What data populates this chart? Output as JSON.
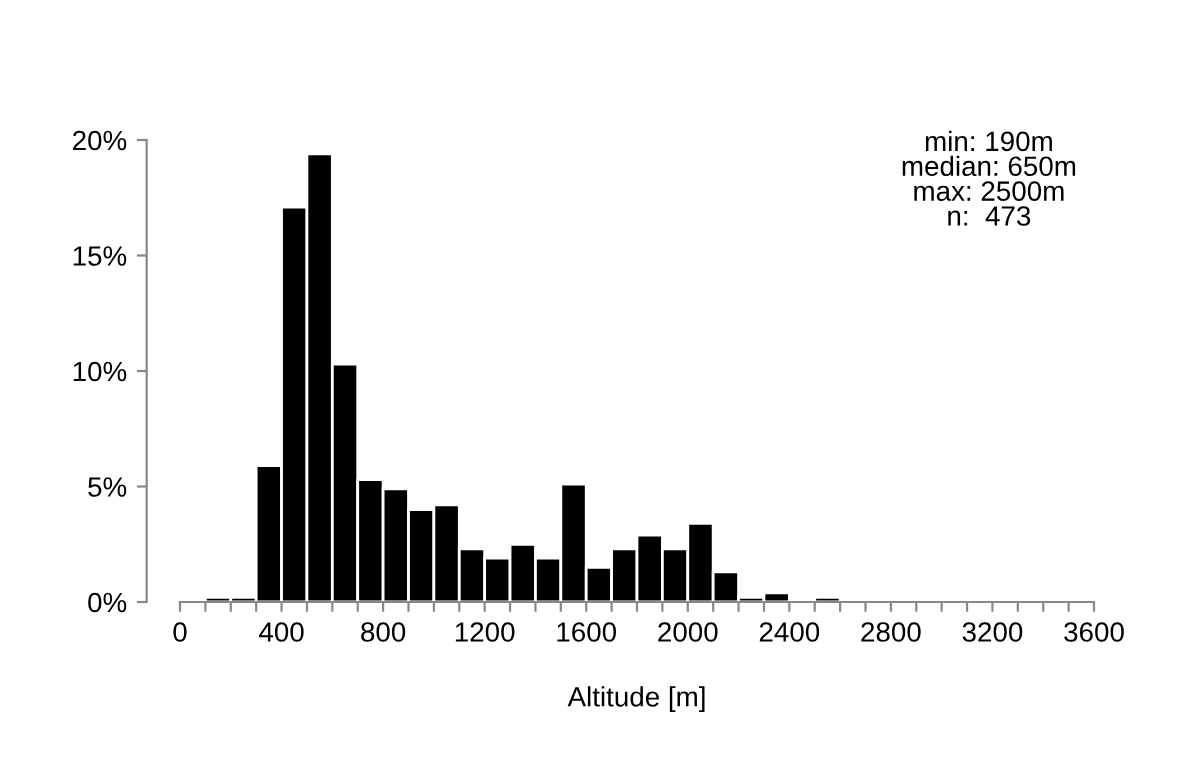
{
  "chart_data": {
    "type": "histogram",
    "xlabel": "Altitude [m]",
    "bins": [
      0,
      100,
      200,
      300,
      400,
      500,
      600,
      700,
      800,
      900,
      1000,
      1100,
      1200,
      1300,
      1400,
      1500,
      1600,
      1700,
      1800,
      1900,
      2000,
      2100,
      2200,
      2300,
      2400,
      2500,
      2600,
      2700,
      2800,
      2900,
      3000,
      3100,
      3200,
      3300,
      3400,
      3500,
      3600
    ],
    "values": [
      0,
      0.2,
      0.2,
      5.9,
      17.1,
      19.4,
      10.3,
      5.3,
      4.9,
      4.0,
      4.2,
      2.3,
      1.9,
      2.5,
      1.9,
      5.1,
      1.5,
      2.3,
      2.9,
      2.3,
      3.4,
      1.3,
      0.2,
      0.4,
      0,
      0.2,
      0,
      0,
      0,
      0,
      0,
      0,
      0,
      0,
      0,
      0
    ],
    "color": "#000000",
    "xlim": [
      0,
      3600
    ],
    "xticks": [
      0,
      {
        "value": 100,
        "label": null
      },
      {
        "value": 200,
        "label": null
      },
      {
        "value": 300,
        "label": null
      },
      400,
      {
        "value": 500,
        "label": null
      },
      {
        "value": 600,
        "label": null
      },
      {
        "value": 700,
        "label": null
      },
      800,
      {
        "value": 900,
        "label": null
      },
      {
        "value": 1000,
        "label": null
      },
      {
        "value": 1100,
        "label": null
      },
      1200,
      {
        "value": 1300,
        "label": null
      },
      {
        "value": 1400,
        "label": null
      },
      {
        "value": 1500,
        "label": null
      },
      1600,
      {
        "value": 1700,
        "label": null
      },
      {
        "value": 1800,
        "label": null
      },
      {
        "value": 1900,
        "label": null
      },
      2000,
      {
        "value": 2100,
        "label": null
      },
      {
        "value": 2200,
        "label": null
      },
      {
        "value": 2300,
        "label": null
      },
      2400,
      {
        "value": 2500,
        "label": null
      },
      {
        "value": 2600,
        "label": null
      },
      {
        "value": 2700,
        "label": null
      },
      2800,
      {
        "value": 2900,
        "label": null
      },
      {
        "value": 3000,
        "label": null
      },
      {
        "value": 3100,
        "label": null
      },
      3200,
      {
        "value": 3300,
        "label": null
      },
      {
        "value": 3400,
        "label": null
      },
      {
        "value": 3500,
        "label": null
      },
      3600
    ],
    "ylim": [
      0,
      20
    ],
    "yticks": [
      {
        "value": 0,
        "label": "0%"
      },
      {
        "value": 5,
        "label": "5%"
      },
      {
        "value": 10,
        "label": "10%"
      },
      {
        "value": 15,
        "label": "15%"
      },
      {
        "value": 20,
        "label": "20%"
      }
    ],
    "annotations": [
      "min: 190m\nmedian: 650m\nmax: 2500m\nn:  473"
    ],
    "grid": false,
    "legend": false
  }
}
